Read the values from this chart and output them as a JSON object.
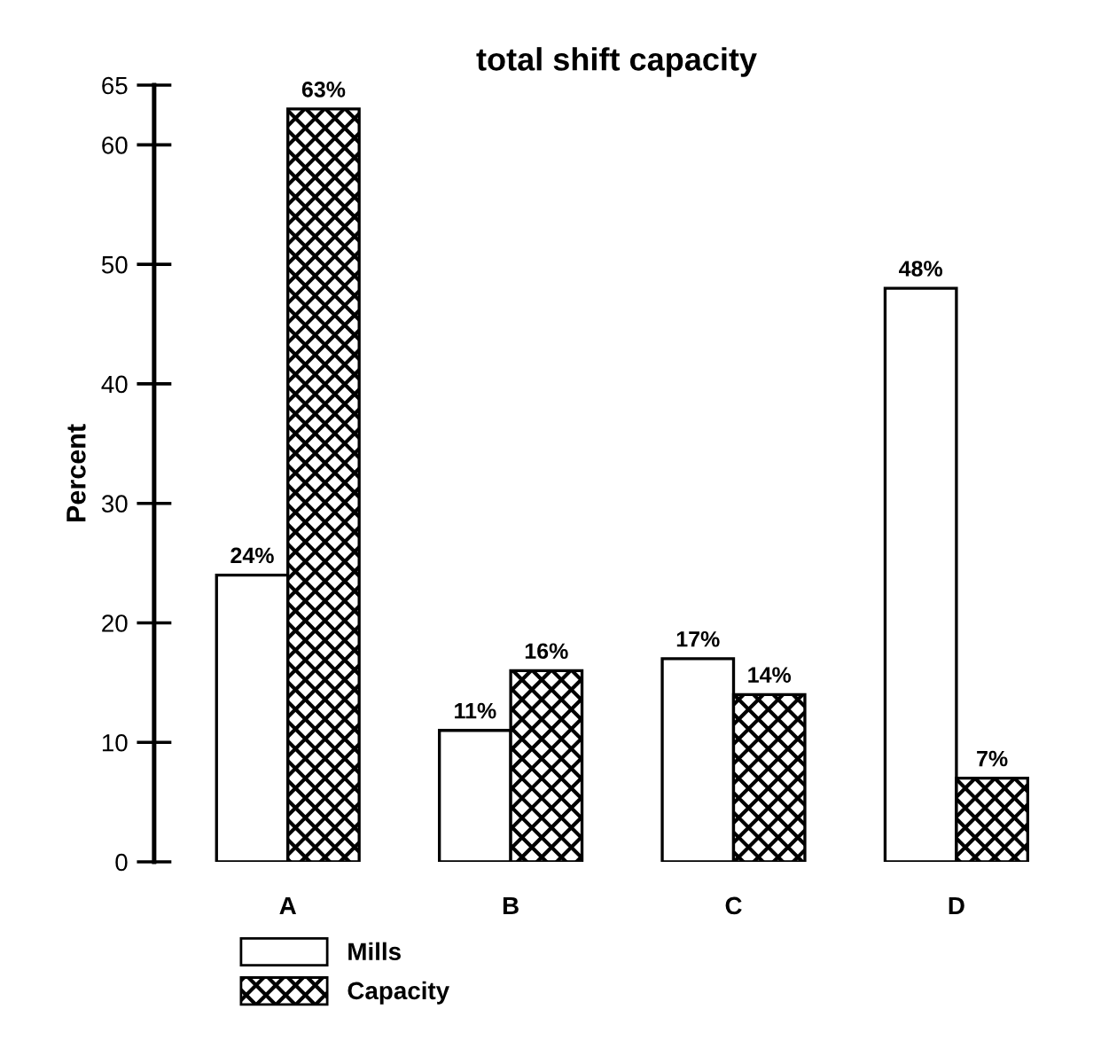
{
  "chart_data": {
    "type": "bar",
    "title": "total shift capacity",
    "ylabel": "Percent",
    "categories": [
      "A",
      "B",
      "C",
      "D"
    ],
    "series": [
      {
        "name": "Mills",
        "color": "#ffffff",
        "values": [
          24,
          11,
          17,
          48
        ],
        "value_labels": [
          "24%",
          "11%",
          "17%",
          "48%"
        ]
      },
      {
        "name": "Capacity",
        "color": "#000000",
        "values": [
          63,
          16,
          14,
          7
        ],
        "value_labels": [
          "63%",
          "16%",
          "14%",
          "7%"
        ]
      }
    ],
    "ylim": [
      0,
      65
    ],
    "yticks": [
      0,
      10,
      20,
      30,
      40,
      50,
      60,
      65
    ],
    "grid": false,
    "legend": "bottom left"
  }
}
